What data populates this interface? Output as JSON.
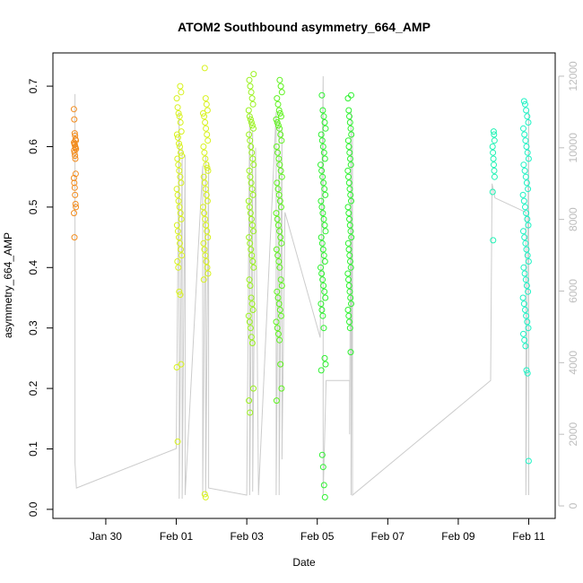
{
  "chart_data": {
    "type": "scatter",
    "title": "ATOM2 Southbound asymmetry_664_AMP",
    "xlabel": "Date",
    "ylabel": "asymmetry_664_AMP",
    "x_tick_labels": [
      "Jan 30",
      "Feb 01",
      "Feb 03",
      "Feb 05",
      "Feb 07",
      "Feb 09",
      "Feb 11"
    ],
    "x_tick_values": [
      "2024-01-30",
      "2024-02-01",
      "2024-02-03",
      "2024-02-05",
      "2024-02-07",
      "2024-02-09",
      "2024-02-11"
    ],
    "xlim": [
      "2024-01-28T12:00",
      "2024-02-11T18:00"
    ],
    "ylim": [
      -0.015,
      0.755
    ],
    "y_ticks": [
      0.0,
      0.1,
      0.2,
      0.3,
      0.4,
      0.5,
      0.6,
      0.7
    ],
    "y_tick_labels": [
      "0.0",
      "0.1",
      "0.2",
      "0.3",
      "0.4",
      "0.5",
      "0.6",
      "0.7"
    ],
    "y2_ticks": [
      0,
      2000,
      4000,
      6000,
      8000,
      10000,
      12000
    ],
    "y2_tick_labels": [
      "0",
      "2000",
      "4000",
      "6000",
      "8000",
      "10000",
      "12000"
    ],
    "y2lim": [
      -350,
      12650
    ],
    "y2_color": "#bdbdbd",
    "grid": false,
    "legend": "none",
    "clusters": [
      {
        "center": "2024-01-29T03:00",
        "spread_days": 0.03,
        "color": "#f28c1e",
        "values": [
          0.662,
          0.645,
          0.622,
          0.618,
          0.612,
          0.61,
          0.607,
          0.605,
          0.603,
          0.6,
          0.598,
          0.596,
          0.594,
          0.59,
          0.585,
          0.58,
          0.555,
          0.548,
          0.54,
          0.532,
          0.52,
          0.505,
          0.5,
          0.49,
          0.45
        ]
      },
      {
        "center": "2024-02-01T02:00",
        "spread_days": 0.07,
        "color": "#d8f21e",
        "values": [
          0.7,
          0.69,
          0.68,
          0.665,
          0.655,
          0.65,
          0.64,
          0.625,
          0.62,
          0.615,
          0.605,
          0.6,
          0.59,
          0.585,
          0.58,
          0.57,
          0.56,
          0.55,
          0.54,
          0.53,
          0.52,
          0.51,
          0.5,
          0.49,
          0.48,
          0.47,
          0.46,
          0.45,
          0.44,
          0.43,
          0.42,
          0.41,
          0.4,
          0.36,
          0.355,
          0.24,
          0.235,
          0.112
        ]
      },
      {
        "center": "2024-02-01T20:00",
        "spread_days": 0.07,
        "color": "#d8f21e",
        "values": [
          0.73,
          0.68,
          0.67,
          0.66,
          0.655,
          0.65,
          0.64,
          0.63,
          0.62,
          0.61,
          0.6,
          0.59,
          0.58,
          0.57,
          0.565,
          0.56,
          0.55,
          0.54,
          0.53,
          0.52,
          0.51,
          0.5,
          0.49,
          0.48,
          0.47,
          0.46,
          0.45,
          0.44,
          0.43,
          0.42,
          0.41,
          0.4,
          0.39,
          0.38,
          0.025,
          0.02
        ]
      },
      {
        "center": "2024-02-03T03:00",
        "spread_days": 0.07,
        "color": "#9af21e",
        "values": [
          0.72,
          0.71,
          0.7,
          0.69,
          0.68,
          0.67,
          0.66,
          0.65,
          0.645,
          0.64,
          0.635,
          0.63,
          0.62,
          0.61,
          0.6,
          0.59,
          0.58,
          0.57,
          0.56,
          0.55,
          0.54,
          0.53,
          0.52,
          0.51,
          0.5,
          0.49,
          0.48,
          0.47,
          0.46,
          0.45,
          0.44,
          0.43,
          0.42,
          0.41,
          0.4,
          0.38,
          0.37,
          0.35,
          0.34,
          0.33,
          0.32,
          0.31,
          0.3,
          0.285,
          0.275,
          0.2,
          0.18,
          0.16
        ]
      },
      {
        "center": "2024-02-03T22:00",
        "spread_days": 0.08,
        "color": "#5ef21e",
        "values": [
          0.71,
          0.7,
          0.69,
          0.68,
          0.67,
          0.66,
          0.655,
          0.65,
          0.645,
          0.64,
          0.635,
          0.63,
          0.62,
          0.61,
          0.6,
          0.59,
          0.58,
          0.57,
          0.56,
          0.55,
          0.54,
          0.53,
          0.52,
          0.51,
          0.5,
          0.49,
          0.48,
          0.47,
          0.46,
          0.45,
          0.44,
          0.43,
          0.42,
          0.41,
          0.4,
          0.38,
          0.37,
          0.36,
          0.35,
          0.34,
          0.33,
          0.32,
          0.31,
          0.3,
          0.29,
          0.28,
          0.24,
          0.2,
          0.18
        ]
      },
      {
        "center": "2024-02-05T04:00",
        "spread_days": 0.07,
        "color": "#2ef230",
        "values": [
          0.685,
          0.66,
          0.65,
          0.64,
          0.63,
          0.62,
          0.61,
          0.6,
          0.59,
          0.58,
          0.57,
          0.56,
          0.55,
          0.54,
          0.53,
          0.52,
          0.51,
          0.5,
          0.49,
          0.48,
          0.47,
          0.46,
          0.45,
          0.44,
          0.43,
          0.42,
          0.41,
          0.4,
          0.39,
          0.38,
          0.37,
          0.36,
          0.35,
          0.34,
          0.33,
          0.32,
          0.3,
          0.25,
          0.24,
          0.23,
          0.09,
          0.07,
          0.04,
          0.02
        ]
      },
      {
        "center": "2024-02-05T22:00",
        "spread_days": 0.05,
        "color": "#2ef230",
        "values": [
          0.685,
          0.68,
          0.66,
          0.65,
          0.64,
          0.63,
          0.62,
          0.61,
          0.6,
          0.59,
          0.58,
          0.57,
          0.56,
          0.55,
          0.54,
          0.53,
          0.52,
          0.51,
          0.5,
          0.49,
          0.48,
          0.47,
          0.46,
          0.45,
          0.44,
          0.43,
          0.42,
          0.41,
          0.4,
          0.39,
          0.38,
          0.37,
          0.36,
          0.35,
          0.34,
          0.33,
          0.32,
          0.31,
          0.3,
          0.26
        ]
      },
      {
        "center": "2024-02-10T00:00",
        "spread_days": 0.03,
        "color": "#1ef2b4",
        "values": [
          0.625,
          0.62,
          0.61,
          0.6,
          0.59,
          0.58,
          0.57,
          0.56,
          0.55,
          0.525,
          0.445
        ]
      },
      {
        "center": "2024-02-10T22:00",
        "spread_days": 0.08,
        "color": "#1ef2c4",
        "values": [
          0.675,
          0.67,
          0.66,
          0.65,
          0.64,
          0.63,
          0.62,
          0.61,
          0.6,
          0.59,
          0.58,
          0.57,
          0.56,
          0.55,
          0.54,
          0.53,
          0.52,
          0.51,
          0.5,
          0.49,
          0.48,
          0.47,
          0.46,
          0.45,
          0.44,
          0.43,
          0.42,
          0.41,
          0.4,
          0.39,
          0.38,
          0.37,
          0.36,
          0.35,
          0.34,
          0.33,
          0.32,
          0.31,
          0.3,
          0.29,
          0.28,
          0.27,
          0.23,
          0.225,
          0.08
        ]
      }
    ],
    "depth_series": {
      "color": "#cccccc",
      "points": [
        [
          "2024-01-29T03:00",
          11500
        ],
        [
          "2024-01-29T03:00",
          1200
        ],
        [
          "2024-01-29T04:00",
          500
        ],
        [
          "2024-02-01T00:00",
          1600
        ],
        [
          "2024-02-01T02:00",
          11000
        ],
        [
          "2024-02-01T02:00",
          200
        ],
        [
          "2024-02-01T04:00",
          10000
        ],
        [
          "2024-02-01T04:00",
          200
        ],
        [
          "2024-02-01T06:00",
          9800
        ],
        [
          "2024-02-01T06:00",
          300
        ],
        [
          "2024-02-01T18:00",
          9500
        ],
        [
          "2024-02-01T18:00",
          300
        ],
        [
          "2024-02-01T20:00",
          9800
        ],
        [
          "2024-02-01T20:00",
          300
        ],
        [
          "2024-02-01T22:00",
          9600
        ],
        [
          "2024-02-01T22:00",
          500
        ],
        [
          "2024-02-03T00:00",
          300
        ],
        [
          "2024-02-03T02:00",
          11000
        ],
        [
          "2024-02-03T02:00",
          300
        ],
        [
          "2024-02-03T04:00",
          10500
        ],
        [
          "2024-02-03T04:00",
          400
        ],
        [
          "2024-02-03T06:00",
          10000
        ],
        [
          "2024-02-03T08:00",
          300
        ],
        [
          "2024-02-03T20:00",
          11000
        ],
        [
          "2024-02-03T20:00",
          300
        ],
        [
          "2024-02-03T22:00",
          10800
        ],
        [
          "2024-02-03T22:00",
          300
        ],
        [
          "2024-02-04T00:00",
          10500
        ],
        [
          "2024-02-04T00:00",
          1300
        ],
        [
          "2024-02-04T02:00",
          8200
        ],
        [
          "2024-02-05T02:00",
          4700
        ],
        [
          "2024-02-05T04:00",
          12000
        ],
        [
          "2024-02-05T04:00",
          300
        ],
        [
          "2024-02-05T06:00",
          3500
        ],
        [
          "2024-02-05T22:00",
          3500
        ],
        [
          "2024-02-05T22:00",
          2000
        ],
        [
          "2024-02-05T23:00",
          11000
        ],
        [
          "2024-02-05T23:00",
          300
        ],
        [
          "2024-02-06T00:00",
          10500
        ],
        [
          "2024-02-06T00:00",
          300
        ],
        [
          "2024-02-09T22:00",
          3500
        ],
        [
          "2024-02-09T23:00",
          9000
        ],
        [
          "2024-02-10T01:00",
          8600
        ],
        [
          "2024-02-10T22:00",
          8200
        ],
        [
          "2024-02-10T22:00",
          300
        ],
        [
          "2024-02-11T00:00",
          11000
        ],
        [
          "2024-02-11T00:00",
          300
        ]
      ]
    }
  }
}
